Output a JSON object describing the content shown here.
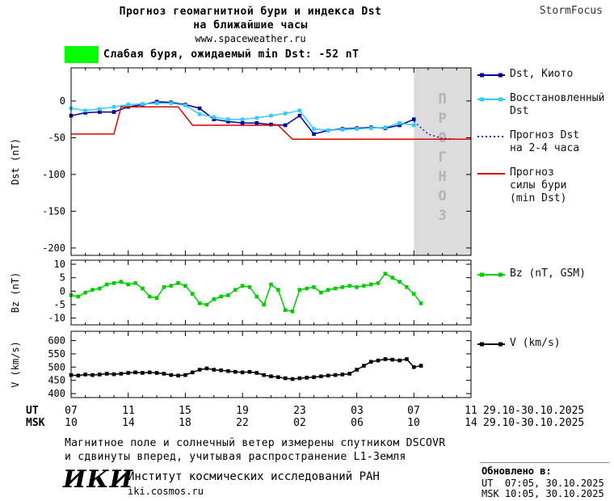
{
  "header": {
    "title_line1": "Прогноз геомагнитной бури и индекса Dst",
    "title_line2": "на ближайшие часы",
    "website": "www.spaceweather.ru",
    "brand": "StormFocus"
  },
  "alert": {
    "swatch_color": "#00ff00",
    "text": "Слабая буря, ожидаемый min Dst: -52 nT"
  },
  "chart_data": [
    {
      "id": "dst",
      "type": "line",
      "ylabel": "Dst (nT)",
      "xlim": [
        7,
        35
      ],
      "ylim": [
        -210,
        45
      ],
      "yticks": [
        0,
        -50,
        -100,
        -150,
        -200
      ],
      "forecast_band": {
        "x_start": 31,
        "x_end": 35,
        "label": "ПРОГНОЗ",
        "fill": "#dcdcdc",
        "text_color": "#b3b3b3"
      },
      "series": [
        {
          "name": "Dst, Киото",
          "color": "#000099",
          "marker": true,
          "dash": null,
          "x_start": 7,
          "x_step": 1,
          "values": [
            -20,
            -16,
            -15,
            -15,
            -8,
            -5,
            -1,
            -2,
            -5,
            -10,
            -25,
            -28,
            -30,
            -30,
            -32,
            -33,
            -20,
            -45,
            -40,
            -38,
            -37,
            -36,
            -37,
            -33,
            -25
          ]
        },
        {
          "name": "Восстановленный Dst",
          "color": "#33ccff",
          "marker": true,
          "dash": null,
          "x_start": 7,
          "x_step": 1,
          "values": [
            -10,
            -13,
            -11,
            -8,
            -5,
            -4,
            -3,
            -3,
            -6,
            -18,
            -22,
            -25,
            -25,
            -23,
            -20,
            -17,
            -13,
            -38,
            -40,
            -39,
            -38,
            -37,
            -36,
            -30,
            -33
          ]
        },
        {
          "name": "Прогноз Dst на 2-4 часа",
          "color": "#2222bb",
          "marker": false,
          "dash": "2,3",
          "x": [
            31,
            32,
            33,
            34,
            35
          ],
          "y": [
            -28,
            -45,
            -51,
            -52,
            -52
          ]
        },
        {
          "name": "Прогноз силы бури (min Dst)",
          "color": "#dd0000",
          "marker": false,
          "dash": null,
          "x": [
            7,
            10,
            10.5,
            14.5,
            15.5,
            21.5,
            22.5,
            35
          ],
          "y": [
            -45,
            -45,
            -8,
            -8,
            -33,
            -33,
            -52,
            -52
          ]
        }
      ]
    },
    {
      "id": "bz",
      "type": "line",
      "ylabel": "Bz (nT)",
      "xlim": [
        7,
        35
      ],
      "ylim": [
        -12.5,
        11.5
      ],
      "yticks": [
        10,
        5,
        0,
        -5,
        -10
      ],
      "series": [
        {
          "name": "Bz (nT, GSM)",
          "color": "#00cc00",
          "marker": true,
          "dash": null,
          "x_start": 7,
          "x_step": 0.5,
          "values": [
            -1.5,
            -2,
            -0.5,
            0.5,
            1,
            2.5,
            3,
            3.5,
            2.5,
            3,
            1,
            -2,
            -2.5,
            1.5,
            2,
            3,
            2,
            -1,
            -4.5,
            -5,
            -3,
            -2,
            -1.5,
            0.5,
            2,
            1.5,
            -2,
            -5,
            2.5,
            0.5,
            -7,
            -7.5,
            0.5,
            1,
            1.5,
            -0.5,
            0.5,
            1,
            1.5,
            2,
            1.5,
            2,
            2.5,
            3,
            6.5,
            5,
            3.5,
            1.5,
            -1,
            -4.5
          ]
        }
      ]
    },
    {
      "id": "v",
      "type": "line",
      "ylabel": "V (km/s)",
      "xlim": [
        7,
        35
      ],
      "ylim": [
        385,
        635
      ],
      "yticks": [
        600,
        550,
        500,
        450,
        400
      ],
      "series": [
        {
          "name": "V (km/s)",
          "color": "#000000",
          "marker": true,
          "dash": null,
          "x_start": 7,
          "x_step": 0.5,
          "values": [
            470,
            468,
            472,
            470,
            472,
            475,
            473,
            475,
            478,
            480,
            478,
            480,
            478,
            475,
            470,
            468,
            470,
            480,
            490,
            495,
            490,
            488,
            485,
            482,
            480,
            482,
            478,
            470,
            465,
            462,
            458,
            455,
            458,
            460,
            462,
            465,
            468,
            470,
            472,
            475,
            490,
            505,
            520,
            525,
            530,
            528,
            525,
            530,
            500,
            505
          ]
        }
      ]
    }
  ],
  "xaxis": {
    "ticks": [
      7,
      11,
      15,
      19,
      23,
      27,
      31,
      35
    ],
    "ut_prefix": "UT",
    "msk_prefix": "MSK",
    "ut_labels": [
      "07",
      "11",
      "15",
      "19",
      "23",
      "03",
      "07",
      "11"
    ],
    "msk_labels": [
      "10",
      "14",
      "18",
      "22",
      "02",
      "06",
      "10",
      "14"
    ],
    "ut_date": "29.10-30.10.2025",
    "msk_date": "29.10-30.10.2025"
  },
  "legend": {
    "main": [
      {
        "lines": [
          "Dst, Киото"
        ],
        "color": "#000099",
        "marker": true,
        "dash": null
      },
      {
        "lines": [
          "Восстановленный",
          "Dst"
        ],
        "color": "#33ccff",
        "marker": true,
        "dash": null
      },
      {
        "lines": [
          "Прогноз Dst",
          "на 2-4 часа"
        ],
        "color": "#2222bb",
        "marker": false,
        "dash": "2,3"
      },
      {
        "lines": [
          "Прогноз",
          "силы бури",
          "(min Dst)"
        ],
        "color": "#dd0000",
        "marker": false,
        "dash": null
      }
    ],
    "bz": {
      "lines": [
        "Bz (nT, GSM)"
      ],
      "color": "#00cc00",
      "marker": true,
      "dash": null
    },
    "v": {
      "lines": [
        "V (km/s)"
      ],
      "color": "#000000",
      "marker": true,
      "dash": null
    }
  },
  "footer": {
    "note_line1": "Магнитное поле и солнечный ветер измерены спутником DSCOVR",
    "note_line2": "и сдвинуты вперед, учитывая распространение L1-Земля",
    "logo": "ИКИ",
    "institute": "Институт космических исследований РАН",
    "site": "iki.cosmos.ru",
    "updated_label": "Обновлено в:",
    "updated_ut": "UT  07:05, 30.10.2025",
    "updated_msk": "MSK 10:05, 30.10.2025"
  }
}
